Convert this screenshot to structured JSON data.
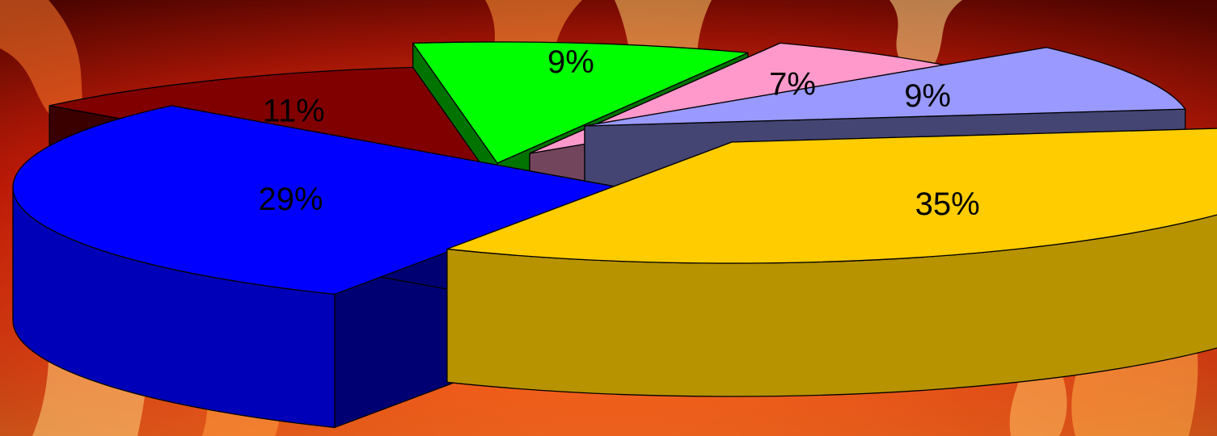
{
  "chart_data": {
    "type": "pie",
    "style": "3d-exploded",
    "title": "",
    "slices": [
      {
        "label": "35%",
        "value": 35,
        "color": "#FFCC00"
      },
      {
        "label": "29%",
        "value": 29,
        "color": "#0000FF"
      },
      {
        "label": "11%",
        "value": 11,
        "color": "#800000"
      },
      {
        "label": "9%",
        "value": 9,
        "color": "#00FF00"
      },
      {
        "label": "7%",
        "value": 7,
        "color": "#FF99CC"
      },
      {
        "label": "9%",
        "value": 9,
        "color": "#9999FF"
      }
    ],
    "legend": "none",
    "background": "fire texture"
  }
}
